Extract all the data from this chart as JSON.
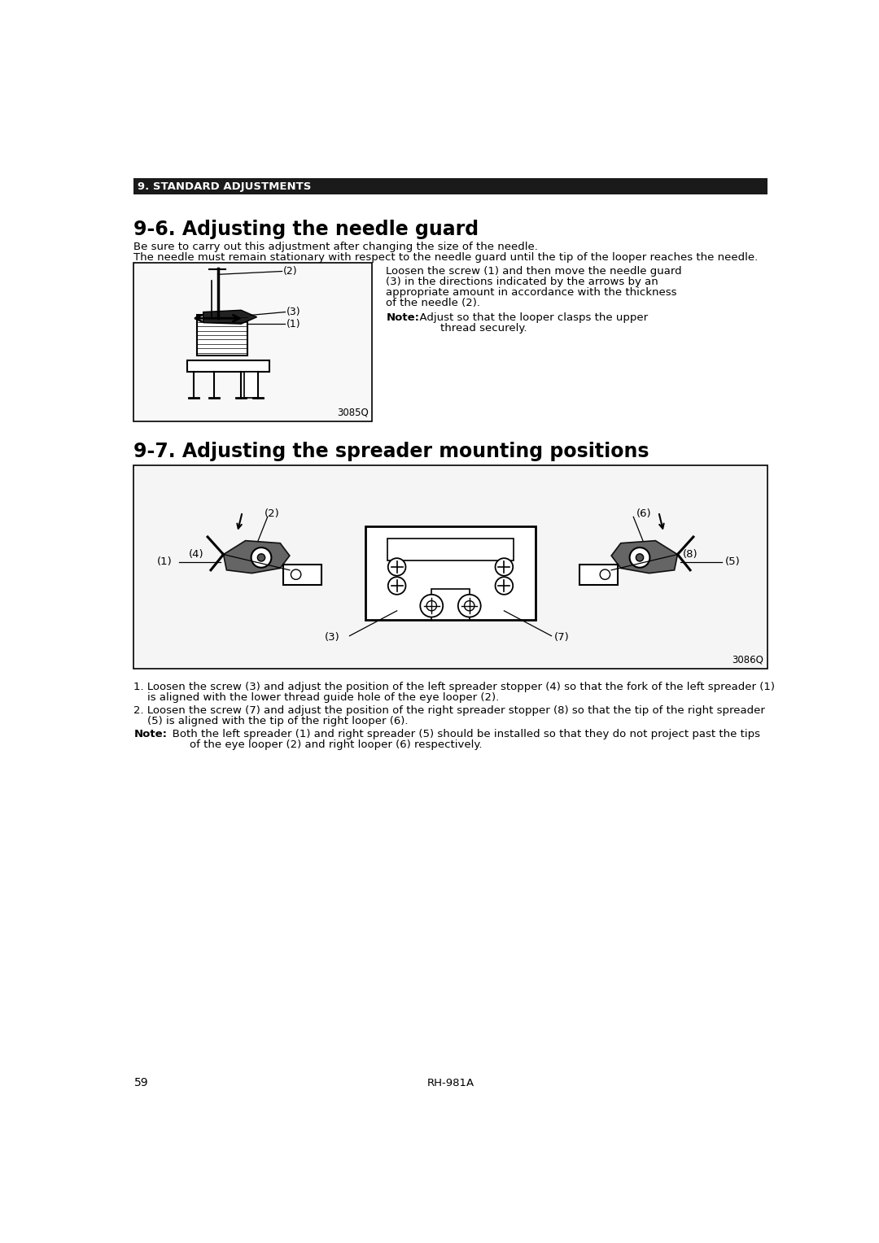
{
  "page_number": "59",
  "footer_text": "RH-981A",
  "section_header": "9. STANDARD ADJUSTMENTS",
  "section_title_1": "9-6. Adjusting the needle guard",
  "section_title_2": "9-7. Adjusting the spreader mounting positions",
  "para1_line1": "Be sure to carry out this adjustment after changing the size of the needle.",
  "para1_line2": "The needle must remain stationary with respect to the needle guard until the tip of the looper reaches the needle.",
  "right_text_lines": [
    "Loosen the screw (1) and then move the needle guard",
    "(3) in the directions indicated by the arrows by an",
    "appropriate amount in accordance with the thickness",
    "of the needle (2)."
  ],
  "right_note_bold": "Note:",
  "right_note_line1": "  Adjust so that the looper clasps the upper",
  "right_note_line2": "        thread securely.",
  "fig1_label": "3085Q",
  "fig2_label": "3086Q",
  "bullet1_line1": "1. Loosen the screw (3) and adjust the position of the left spreader stopper (4) so that the fork of the left spreader (1)",
  "bullet1_line2": "    is aligned with the lower thread guide hole of the eye looper (2).",
  "bullet2_line1": "2. Loosen the screw (7) and adjust the position of the right spreader stopper (8) so that the tip of the right spreader",
  "bullet2_line2": "    (5) is aligned with the tip of the right looper (6).",
  "note2_bold": "Note:",
  "note2_line1": "   Both the left spreader (1) and right spreader (5) should be installed so that they do not project past the tips",
  "note2_line2": "        of the eye looper (2) and right looper (6) respectively.",
  "bg_color": "#ffffff",
  "text_color": "#000000",
  "header_bg": "#1a1a1a",
  "header_text_color": "#ffffff"
}
